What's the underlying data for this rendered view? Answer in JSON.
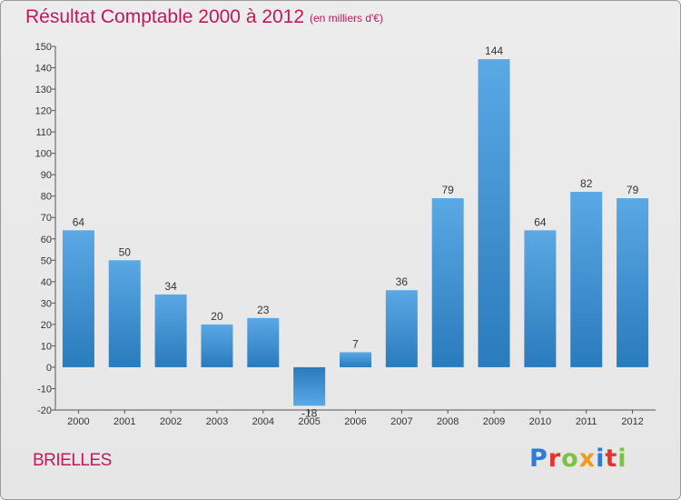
{
  "header": {
    "title": "Résultat Comptable 2000 à 2012",
    "unit": "(en milliers d'€)"
  },
  "footer": {
    "commune": "BRIELLES",
    "logo": "Proxiti"
  },
  "colors": {
    "title": "#c2185b",
    "bar_light": "#5aa8e4",
    "bar_dark": "#2a7bbd",
    "logo_letters": [
      "#2e7bd6",
      "#e8322e",
      "#7cc242",
      "#f39c12",
      "#2e7bd6",
      "#e8322e",
      "#7cc242"
    ]
  },
  "chart_data": {
    "type": "bar",
    "title": "Résultat Comptable 2000 à 2012",
    "subtitle": "(en milliers d'€)",
    "xlabel": "",
    "ylabel": "",
    "categories": [
      "2000",
      "2001",
      "2002",
      "2003",
      "2004",
      "2005",
      "2006",
      "2007",
      "2008",
      "2009",
      "2010",
      "2011",
      "2012"
    ],
    "values": [
      64,
      50,
      34,
      20,
      23,
      -18,
      7,
      36,
      79,
      144,
      64,
      82,
      79
    ],
    "ylim": [
      -20,
      150
    ],
    "yticks": [
      -20,
      -10,
      0,
      10,
      20,
      30,
      40,
      50,
      60,
      70,
      80,
      90,
      100,
      110,
      120,
      130,
      140,
      150
    ],
    "grid": false,
    "legend": "none"
  }
}
